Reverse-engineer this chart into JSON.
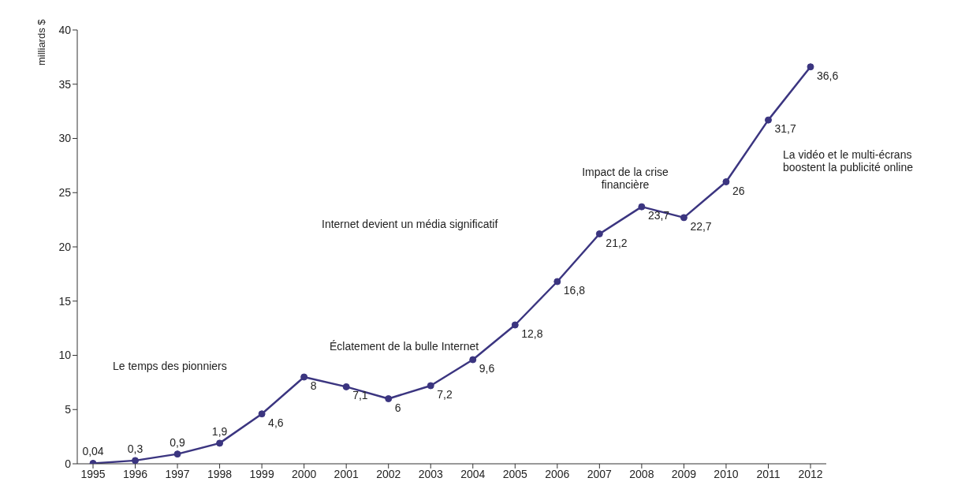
{
  "chart_data": {
    "type": "line",
    "ylabel": "milliards $",
    "categories": [
      "1995",
      "1996",
      "1997",
      "1998",
      "1999",
      "2000",
      "2001",
      "2002",
      "2003",
      "2004",
      "2005",
      "2006",
      "2007",
      "2008",
      "2009",
      "2010",
      "2011",
      "2012"
    ],
    "series": [
      {
        "color": "#3b3580",
        "values": [
          0.04,
          0.3,
          0.9,
          1.9,
          4.6,
          8,
          7.1,
          6,
          7.2,
          9.6,
          12.8,
          16.8,
          21.2,
          23.7,
          22.7,
          26,
          31.7,
          36.6
        ],
        "value_labels": [
          "0,04",
          "0,3",
          "0,9",
          "1,9",
          "4,6",
          "8",
          "7,1",
          "6",
          "7,2",
          "9,6",
          "12,8",
          "16,8",
          "21,2",
          "23,7",
          "22,7",
          "26",
          "31,7",
          "36,6"
        ]
      }
    ],
    "ylim": [
      0,
      40
    ],
    "yticks": [
      0,
      5,
      10,
      15,
      20,
      25,
      30,
      35,
      40
    ],
    "grid": false,
    "legend": false,
    "marker": "circle",
    "line_style": "solid",
    "annotations": [
      "Le temps des pionniers",
      "Éclatement de la bulle Internet",
      "Internet devient un média significatif",
      "Impact de la crise financière",
      "La vidéo et le multi-écrans boostent la publicité online"
    ]
  }
}
